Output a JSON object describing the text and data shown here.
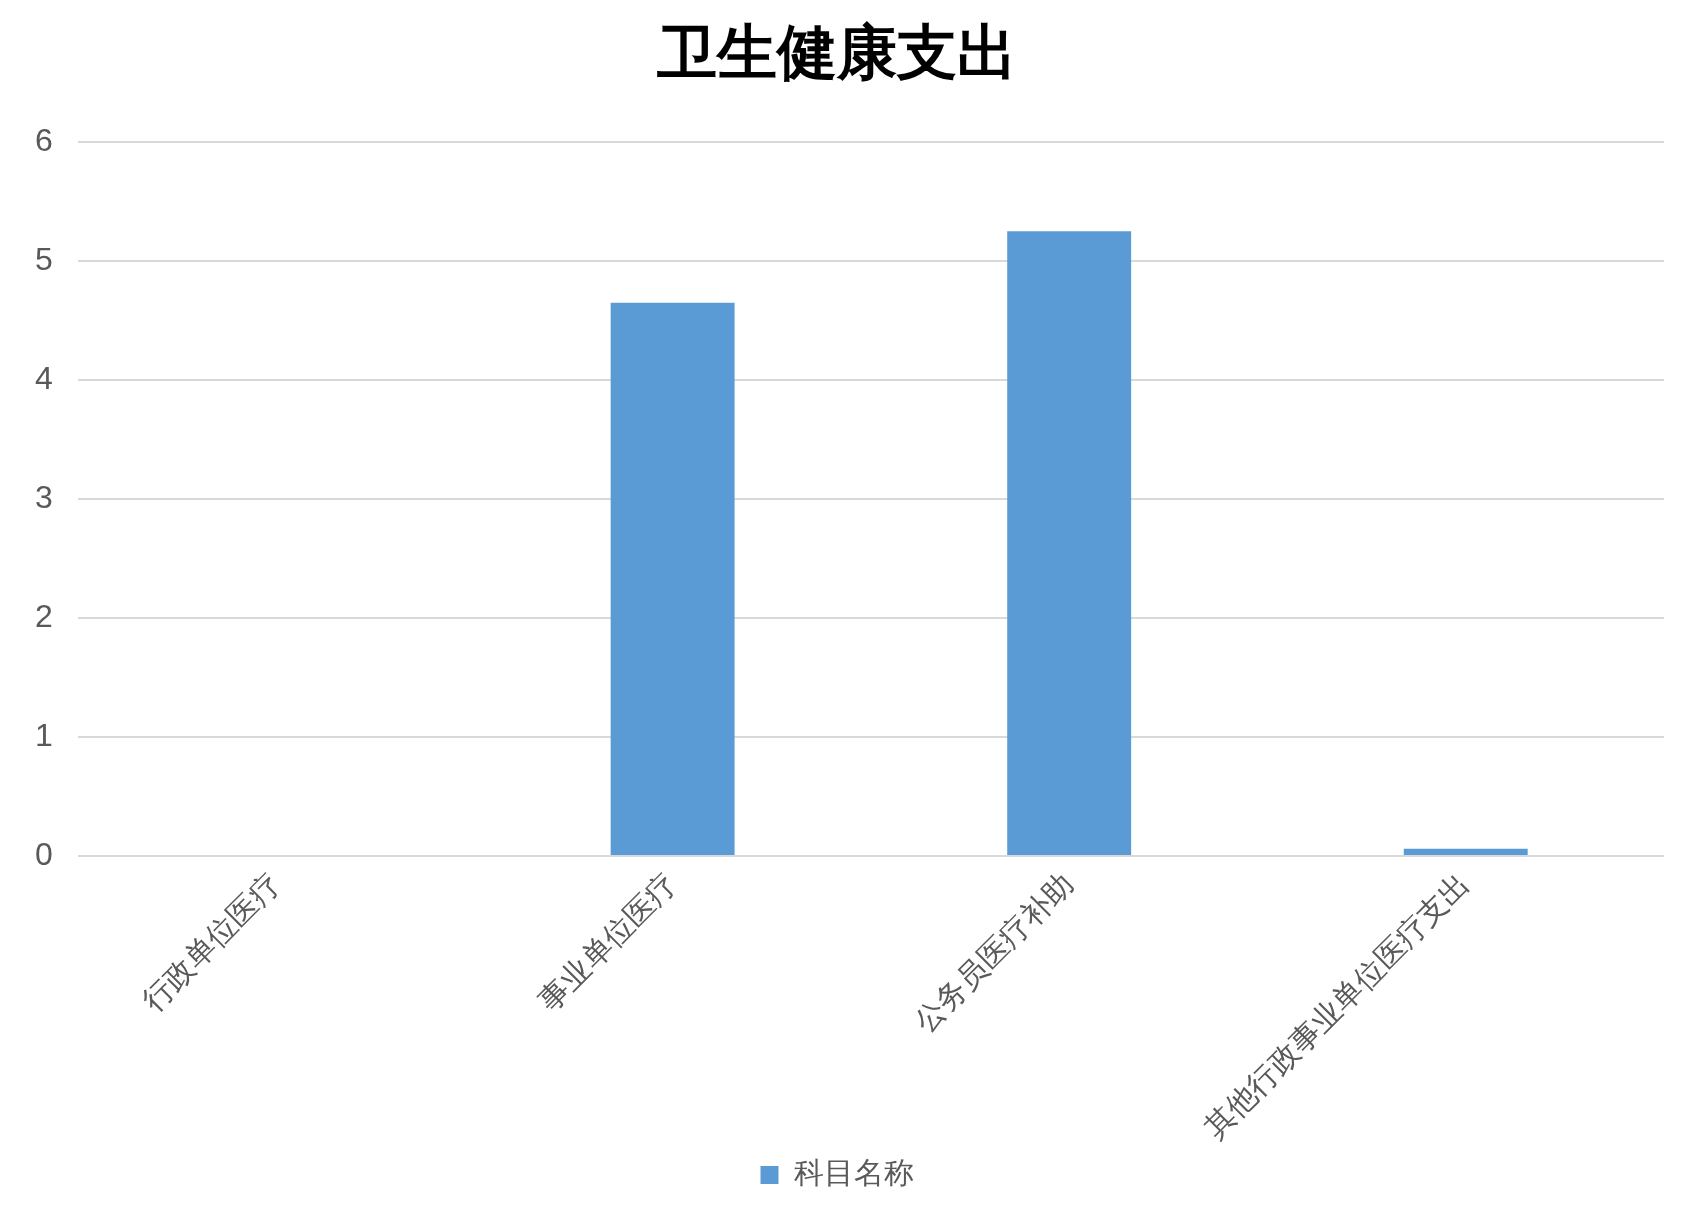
{
  "chart_data": {
    "type": "bar",
    "title": "卫生健康支出",
    "categories": [
      "行政单位医疗",
      "事业单位医疗",
      "公务员医疗补助",
      "其他行政事业单位医疗支出"
    ],
    "series": [
      {
        "name": "科目名称",
        "color": "#5b9bd5",
        "values": [
          0,
          4.65,
          5.25,
          0.06
        ]
      }
    ],
    "ylim": [
      0,
      6
    ],
    "yticks": [
      0,
      1,
      2,
      3,
      4,
      5,
      6
    ],
    "grid": "y",
    "legend": "bottom"
  }
}
